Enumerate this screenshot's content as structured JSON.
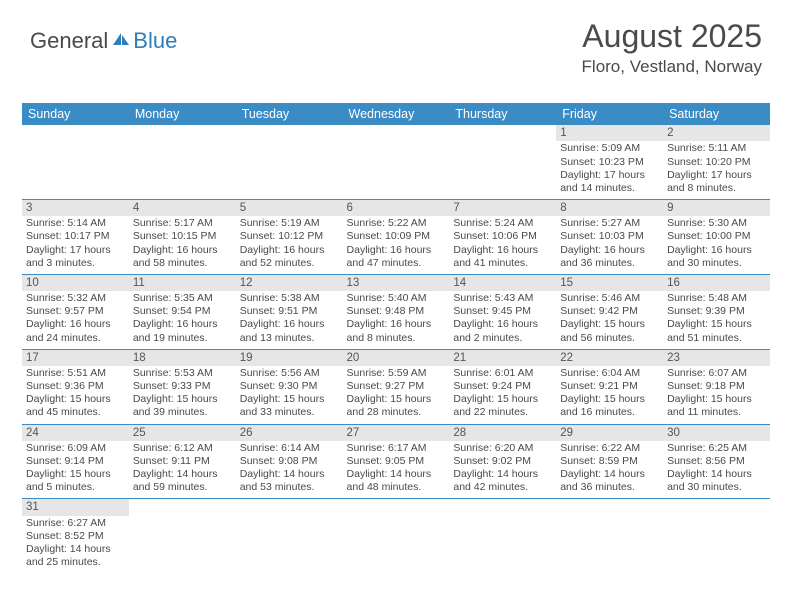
{
  "logo": {
    "text1": "General",
    "text2": "Blue"
  },
  "title": "August 2025",
  "location": "Floro, Vestland, Norway",
  "colors": {
    "header_bg": "#3b8bc4",
    "header_text": "#ffffff",
    "daynum_bg": "#e6e6e6",
    "row_divider": "#3b8bc4",
    "text": "#4a4a4a",
    "logo_blue": "#2c7fb8"
  },
  "weekdays": [
    "Sunday",
    "Monday",
    "Tuesday",
    "Wednesday",
    "Thursday",
    "Friday",
    "Saturday"
  ],
  "days": {
    "1": {
      "sunrise": "5:09 AM",
      "sunset": "10:23 PM",
      "daylight": "17 hours and 14 minutes."
    },
    "2": {
      "sunrise": "5:11 AM",
      "sunset": "10:20 PM",
      "daylight": "17 hours and 8 minutes."
    },
    "3": {
      "sunrise": "5:14 AM",
      "sunset": "10:17 PM",
      "daylight": "17 hours and 3 minutes."
    },
    "4": {
      "sunrise": "5:17 AM",
      "sunset": "10:15 PM",
      "daylight": "16 hours and 58 minutes."
    },
    "5": {
      "sunrise": "5:19 AM",
      "sunset": "10:12 PM",
      "daylight": "16 hours and 52 minutes."
    },
    "6": {
      "sunrise": "5:22 AM",
      "sunset": "10:09 PM",
      "daylight": "16 hours and 47 minutes."
    },
    "7": {
      "sunrise": "5:24 AM",
      "sunset": "10:06 PM",
      "daylight": "16 hours and 41 minutes."
    },
    "8": {
      "sunrise": "5:27 AM",
      "sunset": "10:03 PM",
      "daylight": "16 hours and 36 minutes."
    },
    "9": {
      "sunrise": "5:30 AM",
      "sunset": "10:00 PM",
      "daylight": "16 hours and 30 minutes."
    },
    "10": {
      "sunrise": "5:32 AM",
      "sunset": "9:57 PM",
      "daylight": "16 hours and 24 minutes."
    },
    "11": {
      "sunrise": "5:35 AM",
      "sunset": "9:54 PM",
      "daylight": "16 hours and 19 minutes."
    },
    "12": {
      "sunrise": "5:38 AM",
      "sunset": "9:51 PM",
      "daylight": "16 hours and 13 minutes."
    },
    "13": {
      "sunrise": "5:40 AM",
      "sunset": "9:48 PM",
      "daylight": "16 hours and 8 minutes."
    },
    "14": {
      "sunrise": "5:43 AM",
      "sunset": "9:45 PM",
      "daylight": "16 hours and 2 minutes."
    },
    "15": {
      "sunrise": "5:46 AM",
      "sunset": "9:42 PM",
      "daylight": "15 hours and 56 minutes."
    },
    "16": {
      "sunrise": "5:48 AM",
      "sunset": "9:39 PM",
      "daylight": "15 hours and 51 minutes."
    },
    "17": {
      "sunrise": "5:51 AM",
      "sunset": "9:36 PM",
      "daylight": "15 hours and 45 minutes."
    },
    "18": {
      "sunrise": "5:53 AM",
      "sunset": "9:33 PM",
      "daylight": "15 hours and 39 minutes."
    },
    "19": {
      "sunrise": "5:56 AM",
      "sunset": "9:30 PM",
      "daylight": "15 hours and 33 minutes."
    },
    "20": {
      "sunrise": "5:59 AM",
      "sunset": "9:27 PM",
      "daylight": "15 hours and 28 minutes."
    },
    "21": {
      "sunrise": "6:01 AM",
      "sunset": "9:24 PM",
      "daylight": "15 hours and 22 minutes."
    },
    "22": {
      "sunrise": "6:04 AM",
      "sunset": "9:21 PM",
      "daylight": "15 hours and 16 minutes."
    },
    "23": {
      "sunrise": "6:07 AM",
      "sunset": "9:18 PM",
      "daylight": "15 hours and 11 minutes."
    },
    "24": {
      "sunrise": "6:09 AM",
      "sunset": "9:14 PM",
      "daylight": "15 hours and 5 minutes."
    },
    "25": {
      "sunrise": "6:12 AM",
      "sunset": "9:11 PM",
      "daylight": "14 hours and 59 minutes."
    },
    "26": {
      "sunrise": "6:14 AM",
      "sunset": "9:08 PM",
      "daylight": "14 hours and 53 minutes."
    },
    "27": {
      "sunrise": "6:17 AM",
      "sunset": "9:05 PM",
      "daylight": "14 hours and 48 minutes."
    },
    "28": {
      "sunrise": "6:20 AM",
      "sunset": "9:02 PM",
      "daylight": "14 hours and 42 minutes."
    },
    "29": {
      "sunrise": "6:22 AM",
      "sunset": "8:59 PM",
      "daylight": "14 hours and 36 minutes."
    },
    "30": {
      "sunrise": "6:25 AM",
      "sunset": "8:56 PM",
      "daylight": "14 hours and 30 minutes."
    },
    "31": {
      "sunrise": "6:27 AM",
      "sunset": "8:52 PM",
      "daylight": "14 hours and 25 minutes."
    }
  },
  "labels": {
    "sunrise_prefix": "Sunrise: ",
    "sunset_prefix": "Sunset: ",
    "daylight_prefix": "Daylight: "
  },
  "layout": {
    "first_weekday_index": 5,
    "total_days": 31,
    "columns": 7
  }
}
